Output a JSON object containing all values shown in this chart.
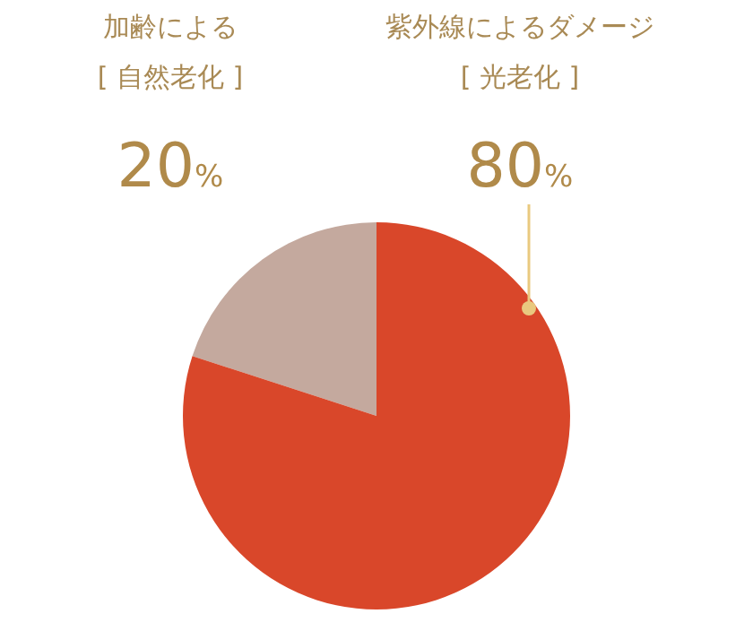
{
  "chart_data": {
    "type": "pie",
    "categories": [
      "加齢による\n[ 自然老化 ]",
      "紫外線によるダメージ\n[ 光老化 ]"
    ],
    "values": [
      20,
      80
    ],
    "value_labels": [
      "20%",
      "80%"
    ],
    "colors": [
      "#c4a99e",
      "#d9472a"
    ]
  }
}
